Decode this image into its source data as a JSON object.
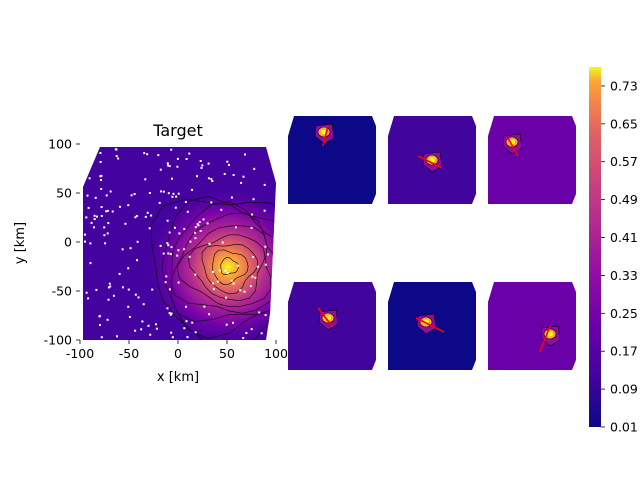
{
  "chart_data": [
    {
      "type": "heatmap",
      "title": "Target",
      "xlabel": "x [km]",
      "ylabel": "y [km]",
      "xlim": [
        -100,
        100
      ],
      "ylim": [
        -100,
        100
      ],
      "xticks": [
        -100,
        -50,
        0,
        50,
        100
      ],
      "yticks": [
        -100,
        -50,
        0,
        50,
        100
      ],
      "peak": {
        "x": 52,
        "y": -25,
        "value": 0.75
      },
      "background_value": 0.08,
      "contours": true,
      "stations": "white dots",
      "colormap": "plasma"
    },
    {
      "type": "heatmap",
      "title": "",
      "panels": [
        {
          "row": 1,
          "col": 1,
          "background_value": 0.03
        },
        {
          "row": 1,
          "col": 2,
          "background_value": 0.12
        },
        {
          "row": 1,
          "col": 3,
          "background_value": 0.14
        },
        {
          "row": 2,
          "col": 1,
          "background_value": 0.12
        },
        {
          "row": 2,
          "col": 2,
          "background_value": 0.04
        },
        {
          "row": 2,
          "col": 3,
          "background_value": 0.14
        }
      ],
      "arrow_color": "#ff0000"
    },
    {
      "type": "colorbar",
      "colormap": "plasma",
      "range": [
        0.01,
        0.77
      ],
      "tick_labels": [
        "0.73",
        "0.65",
        "0.57",
        "0.49",
        "0.41",
        "0.33",
        "0.25",
        "0.17",
        "0.09",
        "0.01"
      ]
    }
  ]
}
